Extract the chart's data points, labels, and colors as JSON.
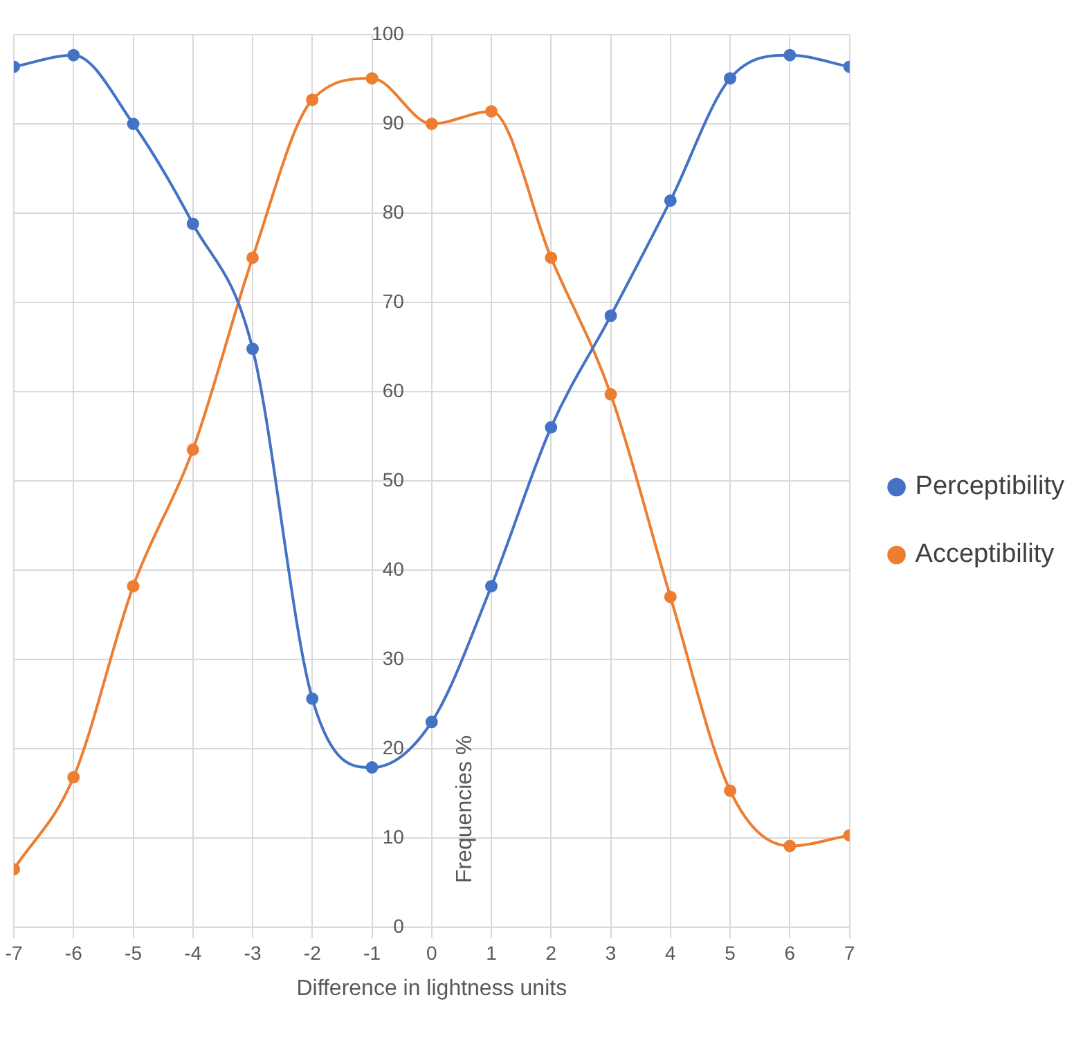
{
  "chart_data": {
    "type": "line",
    "xlabel": "Difference in lightness units",
    "ylabel": "Frequencies %",
    "x": [
      -7,
      -6,
      -5,
      -4,
      -3,
      -2,
      -1,
      0,
      1,
      2,
      3,
      4,
      5,
      6,
      7
    ],
    "series": [
      {
        "name": "Perceptibility",
        "color": "#4472c4",
        "values": [
          96.4,
          97.7,
          90.0,
          78.8,
          64.8,
          25.6,
          17.9,
          23.0,
          38.2,
          56.0,
          68.5,
          81.4,
          95.1,
          97.7,
          96.4
        ]
      },
      {
        "name": "Acceptibility",
        "color": "#ed7d31",
        "values": [
          6.5,
          16.8,
          38.2,
          53.5,
          75.0,
          92.7,
          95.1,
          90.0,
          91.4,
          75.0,
          59.7,
          37.0,
          15.3,
          9.1,
          10.3
        ]
      }
    ],
    "xlim": [
      -7,
      7
    ],
    "xticks": [
      -7,
      -6,
      -5,
      -4,
      -3,
      -2,
      -1,
      0,
      1,
      2,
      3,
      4,
      5,
      6,
      7
    ],
    "ylim": [
      0,
      100
    ],
    "yticks": [
      0,
      10,
      20,
      30,
      40,
      50,
      60,
      70,
      80,
      90,
      100
    ],
    "grid": true,
    "legend": "right",
    "marker": "circle",
    "line_style": "solid"
  }
}
